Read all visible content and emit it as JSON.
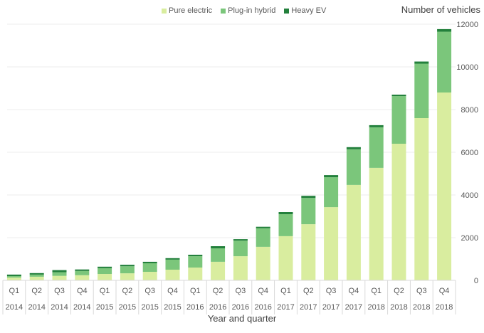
{
  "chart_data": {
    "type": "bar",
    "stacked": true,
    "title": "",
    "xlabel": "Year and quarter",
    "ylabel": "Number of vehicles",
    "ylim": [
      0,
      12000
    ],
    "yticks": [
      0,
      2000,
      4000,
      6000,
      8000,
      10000,
      12000
    ],
    "grid": true,
    "legend_position": "top",
    "y_axis_side": "right",
    "categories": [
      {
        "quarter": "Q1",
        "year": "2014"
      },
      {
        "quarter": "Q2",
        "year": "2014"
      },
      {
        "quarter": "Q3",
        "year": "2014"
      },
      {
        "quarter": "Q4",
        "year": "2014"
      },
      {
        "quarter": "Q1",
        "year": "2015"
      },
      {
        "quarter": "Q2",
        "year": "2015"
      },
      {
        "quarter": "Q3",
        "year": "2015"
      },
      {
        "quarter": "Q4",
        "year": "2015"
      },
      {
        "quarter": "Q1",
        "year": "2016"
      },
      {
        "quarter": "Q2",
        "year": "2016"
      },
      {
        "quarter": "Q3",
        "year": "2016"
      },
      {
        "quarter": "Q4",
        "year": "2016"
      },
      {
        "quarter": "Q1",
        "year": "2017"
      },
      {
        "quarter": "Q2",
        "year": "2017"
      },
      {
        "quarter": "Q3",
        "year": "2017"
      },
      {
        "quarter": "Q4",
        "year": "2017"
      },
      {
        "quarter": "Q1",
        "year": "2018"
      },
      {
        "quarter": "Q2",
        "year": "2018"
      },
      {
        "quarter": "Q3",
        "year": "2018"
      },
      {
        "quarter": "Q4",
        "year": "2018"
      }
    ],
    "series": [
      {
        "name": "Pure electric",
        "color": "#d9ed9f",
        "values": [
          130,
          170,
          210,
          240,
          300,
          330,
          400,
          500,
          600,
          870,
          1130,
          1570,
          2070,
          2630,
          3430,
          4470,
          5270,
          6400,
          7600,
          8800
        ]
      },
      {
        "name": "Plug-in hybrid",
        "color": "#7bc67b",
        "values": [
          70,
          100,
          170,
          200,
          270,
          330,
          400,
          470,
          530,
          630,
          730,
          870,
          1030,
          1230,
          1400,
          1670,
          1900,
          2230,
          2550,
          2850
        ]
      },
      {
        "name": "Heavy EV",
        "color": "#23803c",
        "values": [
          70,
          70,
          100,
          70,
          70,
          70,
          70,
          70,
          70,
          100,
          70,
          70,
          100,
          100,
          100,
          100,
          100,
          70,
          100,
          120
        ]
      }
    ]
  }
}
